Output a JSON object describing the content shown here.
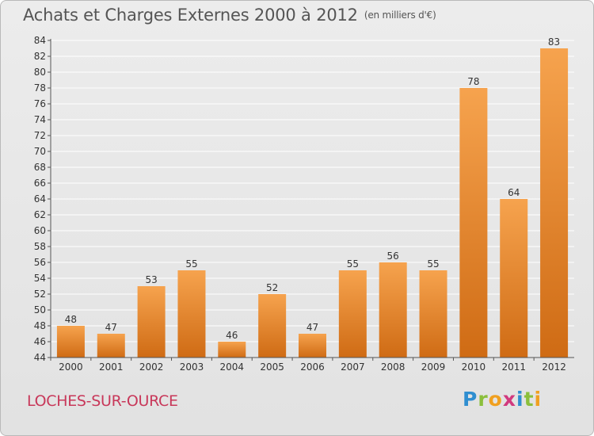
{
  "title": "Achats et Charges Externes 2000 à 2012",
  "unit_note": "(en milliers d'€)",
  "place_name": "LOCHES-SUR-OURCE",
  "logo": {
    "text": "Proxiti",
    "letters": [
      {
        "ch": "P",
        "color": "#2f8ed0"
      },
      {
        "ch": "r",
        "color": "#8bbf3c"
      },
      {
        "ch": "o",
        "color": "#f0a020"
      },
      {
        "ch": "x",
        "color": "#d13a7e"
      },
      {
        "ch": "i",
        "color": "#2f8ed0"
      },
      {
        "ch": "t",
        "color": "#8bbf3c"
      },
      {
        "ch": "i",
        "color": "#f0a020"
      }
    ]
  },
  "colors": {
    "bar_top": "#f6a34e",
    "bar_bottom": "#cf6b14",
    "axis": "#555555",
    "grid": "#ffffff",
    "text": "#333333"
  },
  "chart_data": {
    "type": "bar",
    "title": "Achats et Charges Externes 2000 à 2012",
    "xlabel": "",
    "ylabel": "",
    "categories": [
      "2000",
      "2001",
      "2002",
      "2003",
      "2004",
      "2005",
      "2006",
      "2007",
      "2008",
      "2009",
      "2010",
      "2011",
      "2012"
    ],
    "values": [
      48,
      47,
      53,
      55,
      46,
      52,
      47,
      55,
      56,
      55,
      78,
      64,
      83
    ],
    "ylim": [
      44,
      84
    ],
    "yticks": [
      44,
      46,
      48,
      50,
      52,
      54,
      56,
      58,
      60,
      62,
      64,
      66,
      68,
      70,
      72,
      74,
      76,
      78,
      80,
      82,
      84
    ],
    "grid": true,
    "legend": "none"
  }
}
